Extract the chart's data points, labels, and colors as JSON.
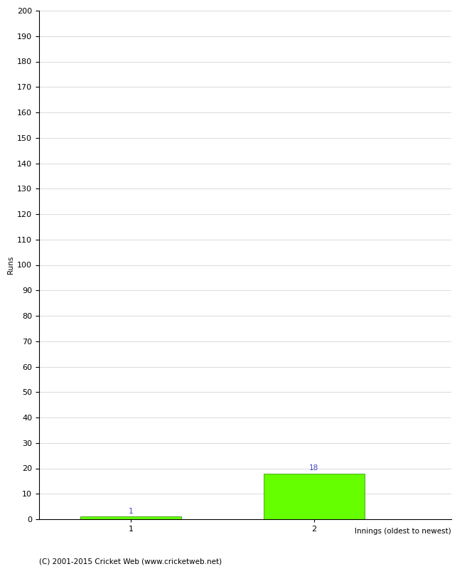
{
  "categories": [
    "1",
    "2"
  ],
  "values": [
    1,
    18
  ],
  "bar_color": "#66ff00",
  "bar_edge_color": "#228800",
  "ylabel": "Runs",
  "xlabel": "Innings (oldest to newest)",
  "ylim": [
    0,
    200
  ],
  "annotation_color": "#4444cc",
  "annotation_fontsize": 7.5,
  "footer_text": "(C) 2001-2015 Cricket Web (www.cricketweb.net)",
  "footer_fontsize": 7.5,
  "background_color": "#ffffff",
  "grid_color": "#cccccc",
  "tick_label_fontsize": 8,
  "axis_label_fontsize": 7.5
}
